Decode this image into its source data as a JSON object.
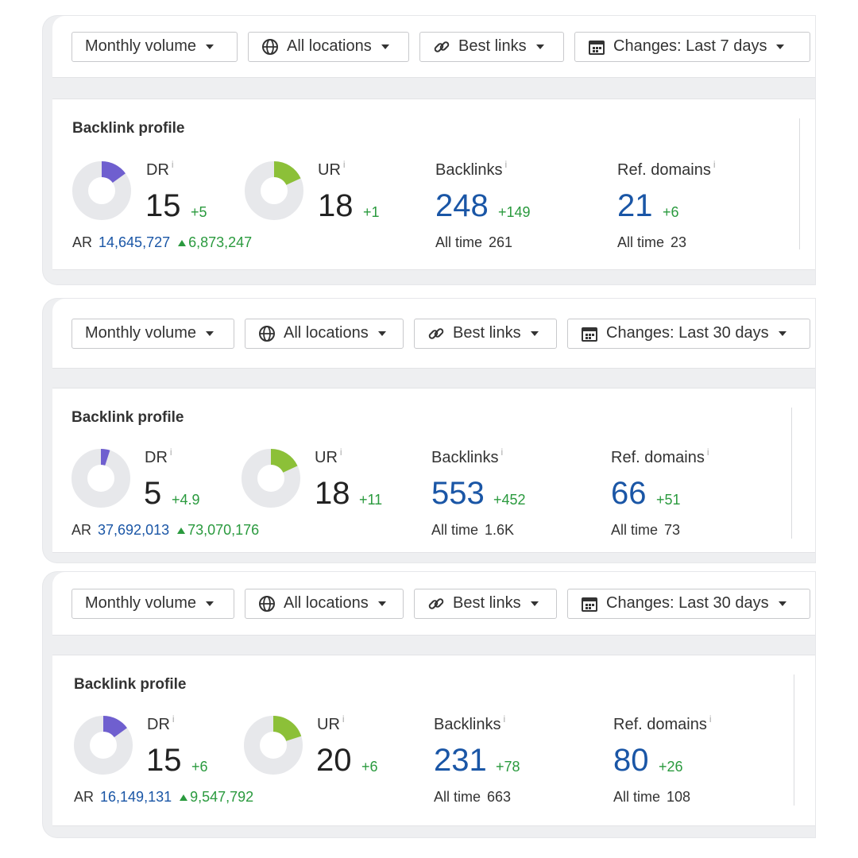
{
  "colors": {
    "dr": "#6f5fcf",
    "ur": "#8cc038",
    "ring": "#e7e8eb",
    "blue": "#1a56a6",
    "green": "#2a9a3e"
  },
  "cards": [
    {
      "toolbar": {
        "volume": "Monthly volume",
        "locations": "All locations",
        "links": "Best links",
        "changes": "Changes: Last 7 days"
      },
      "profile": {
        "title": "Backlink profile",
        "dr": {
          "label": "DR",
          "value": "15",
          "delta": "+5",
          "fraction": 0.15
        },
        "ur": {
          "label": "UR",
          "value": "18",
          "delta": "+1",
          "fraction": 0.18
        },
        "ar": {
          "label": "AR",
          "value": "14,645,727",
          "delta": "6,873,247"
        },
        "backlinks": {
          "label": "Backlinks",
          "value": "248",
          "delta": "+149",
          "alltime_label": "All time",
          "alltime": "261"
        },
        "refdomains": {
          "label": "Ref. domains",
          "value": "21",
          "delta": "+6",
          "alltime_label": "All time",
          "alltime": "23"
        }
      }
    },
    {
      "toolbar": {
        "volume": "Monthly volume",
        "locations": "All locations",
        "links": "Best links",
        "changes": "Changes: Last 30 days"
      },
      "profile": {
        "title": "Backlink profile",
        "dr": {
          "label": "DR",
          "value": "5",
          "delta": "+4.9",
          "fraction": 0.05
        },
        "ur": {
          "label": "UR",
          "value": "18",
          "delta": "+11",
          "fraction": 0.18
        },
        "ar": {
          "label": "AR",
          "value": "37,692,013",
          "delta": "73,070,176"
        },
        "backlinks": {
          "label": "Backlinks",
          "value": "553",
          "delta": "+452",
          "alltime_label": "All time",
          "alltime": "1.6K"
        },
        "refdomains": {
          "label": "Ref. domains",
          "value": "66",
          "delta": "+51",
          "alltime_label": "All time",
          "alltime": "73"
        }
      }
    },
    {
      "toolbar": {
        "volume": "Monthly volume",
        "locations": "All locations",
        "links": "Best links",
        "changes": "Changes: Last 30 days"
      },
      "profile": {
        "title": "Backlink profile",
        "dr": {
          "label": "DR",
          "value": "15",
          "delta": "+6",
          "fraction": 0.15
        },
        "ur": {
          "label": "UR",
          "value": "20",
          "delta": "+6",
          "fraction": 0.2
        },
        "ar": {
          "label": "AR",
          "value": "16,149,131",
          "delta": "9,547,792"
        },
        "backlinks": {
          "label": "Backlinks",
          "value": "231",
          "delta": "+78",
          "alltime_label": "All time",
          "alltime": "663"
        },
        "refdomains": {
          "label": "Ref. domains",
          "value": "80",
          "delta": "+26",
          "alltime_label": "All time",
          "alltime": "108"
        }
      }
    }
  ]
}
